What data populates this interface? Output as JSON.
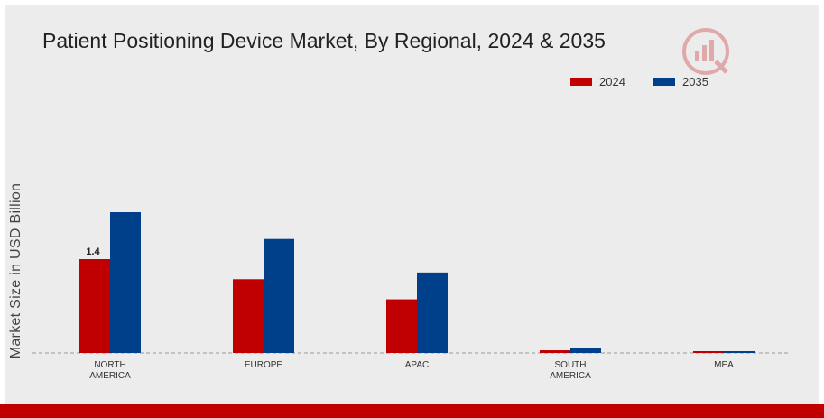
{
  "chart_data": {
    "type": "bar",
    "title": "Patient Positioning Device Market, By Regional, 2024 & 2035",
    "ylabel": "Market Size in USD Billion",
    "xlabel": "",
    "categories": [
      "NORTH\nAMERICA",
      "EUROPE",
      "APAC",
      "SOUTH\nAMERICA",
      "MEA"
    ],
    "series": [
      {
        "name": "2024",
        "color": "#c00000",
        "values": [
          1.4,
          1.1,
          0.8,
          0.04,
          0.02
        ]
      },
      {
        "name": "2035",
        "color": "#003f8a",
        "values": [
          2.1,
          1.7,
          1.2,
          0.07,
          0.02
        ]
      }
    ],
    "data_labels": [
      {
        "series": 0,
        "index": 0,
        "text": "1.4"
      }
    ],
    "ylim": [
      0,
      2.1
    ],
    "grid": false,
    "legend_position": "top-right"
  },
  "logo": {
    "name": "market-research-logo"
  }
}
